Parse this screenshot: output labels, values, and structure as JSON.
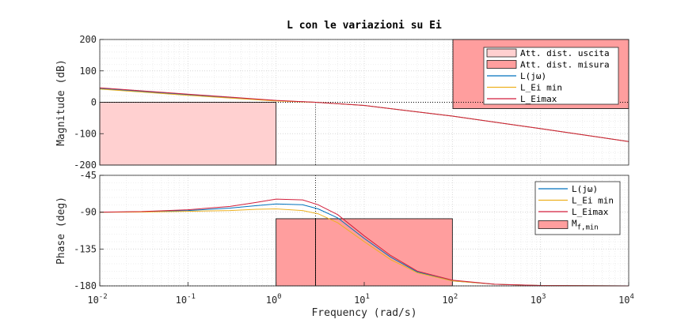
{
  "chart_data": [
    {
      "type": "line",
      "title": "L con le variazioni su Ei",
      "xlabel": "",
      "ylabel": "Magnitude  (dB)",
      "xscale": "log",
      "xlim": [
        0.01,
        10000
      ],
      "ylim": [
        -200,
        200
      ],
      "yticks": [
        -200,
        -100,
        0,
        100,
        200
      ],
      "grid": true,
      "legend_position": "top-right",
      "series": [
        {
          "name": "L(jω)",
          "color": "#0072bd",
          "x": [
            0.01,
            0.1,
            1,
            2.8,
            10,
            100,
            1000,
            10000
          ],
          "y": [
            44,
            24,
            5,
            0,
            -10,
            -44,
            -84,
            -125
          ]
        },
        {
          "name": "L_Ei min",
          "color": "#edb120",
          "x": [
            0.01,
            0.1,
            1,
            2.8,
            10,
            100,
            1000,
            10000
          ],
          "y": [
            42,
            22,
            4,
            0,
            -10,
            -44,
            -84,
            -125
          ]
        },
        {
          "name": "L_Eimax",
          "color": "#d21f3c",
          "x": [
            0.01,
            0.1,
            1,
            2.8,
            10,
            100,
            1000,
            10000
          ],
          "y": [
            46,
            26,
            6,
            0,
            -10,
            -44,
            -84,
            -125
          ]
        }
      ],
      "regions": [
        {
          "name": "Att. dist. uscita",
          "x": [
            0.01,
            1
          ],
          "y": [
            -200,
            0
          ],
          "color": "#ffd0d0"
        },
        {
          "name": "Att. dist. misura",
          "x": [
            10000,
            10000
          ],
          "y": [
            -20,
            200
          ],
          "color": "#ff9e9e"
        }
      ],
      "crossover_x": 2.8
    },
    {
      "type": "line",
      "title": "",
      "xlabel": "Frequency  (rad/s)",
      "ylabel": "Phase  (deg)",
      "xscale": "log",
      "xlim": [
        0.01,
        10000
      ],
      "ylim": [
        -180,
        -45
      ],
      "yticks": [
        -180,
        -135,
        -90,
        -45
      ],
      "xticks": [
        "10^-2",
        "10^-1",
        "10^0",
        "10^1",
        "10^2",
        "10^3",
        "10^4"
      ],
      "grid": true,
      "legend_position": "top-right",
      "series": [
        {
          "name": "L(jω)",
          "color": "#0072bd",
          "x": [
            0.01,
            0.03,
            0.1,
            0.3,
            0.6,
            1,
            2,
            3,
            5,
            10,
            20,
            40,
            100,
            300,
            1000,
            10000
          ],
          "y": [
            -90,
            -89.5,
            -88,
            -85,
            -82,
            -80,
            -81,
            -86,
            -97,
            -122,
            -145,
            -163,
            -174,
            -178,
            -179.5,
            -180
          ]
        },
        {
          "name": "L_Ei min",
          "color": "#edb120",
          "x": [
            0.01,
            0.03,
            0.1,
            0.3,
            0.6,
            1,
            2,
            3,
            5,
            10,
            20,
            40,
            100,
            300,
            1000,
            10000
          ],
          "y": [
            -90,
            -89.8,
            -89,
            -88,
            -86.5,
            -86,
            -88,
            -92,
            -103,
            -126,
            -148,
            -164,
            -174,
            -178,
            -179.5,
            -180
          ]
        },
        {
          "name": "L_Eimax",
          "color": "#d21f3c",
          "x": [
            0.01,
            0.03,
            0.1,
            0.3,
            0.6,
            1,
            2,
            3,
            5,
            10,
            20,
            40,
            100,
            300,
            1000,
            10000
          ],
          "y": [
            -90,
            -89.3,
            -87,
            -83,
            -78,
            -74,
            -75,
            -81,
            -93,
            -119,
            -143,
            -162,
            -173,
            -178,
            -179.5,
            -180
          ]
        }
      ],
      "regions": [
        {
          "name": "M_f,min",
          "x": [
            1,
            100
          ],
          "y": [
            -180,
            -98
          ],
          "color": "#ff9e9e"
        }
      ],
      "crossover_x": 2.8,
      "xticks_display": [
        {
          "base": "10",
          "exp": "-2"
        },
        {
          "base": "10",
          "exp": "-1"
        },
        {
          "base": "10",
          "exp": "0"
        },
        {
          "base": "10",
          "exp": "1"
        },
        {
          "base": "10",
          "exp": "2"
        },
        {
          "base": "10",
          "exp": "3"
        },
        {
          "base": "10",
          "exp": "4"
        }
      ]
    }
  ],
  "legend_mag": [
    "Att. dist. uscita",
    "Att. dist. misura",
    "L(jω)",
    "L_Ei min",
    "L_Eimax"
  ],
  "legend_phase": [
    "L(jω)",
    "L_Ei min",
    "L_Eimax",
    "M"
  ],
  "legend_phase_sub": "f,min"
}
